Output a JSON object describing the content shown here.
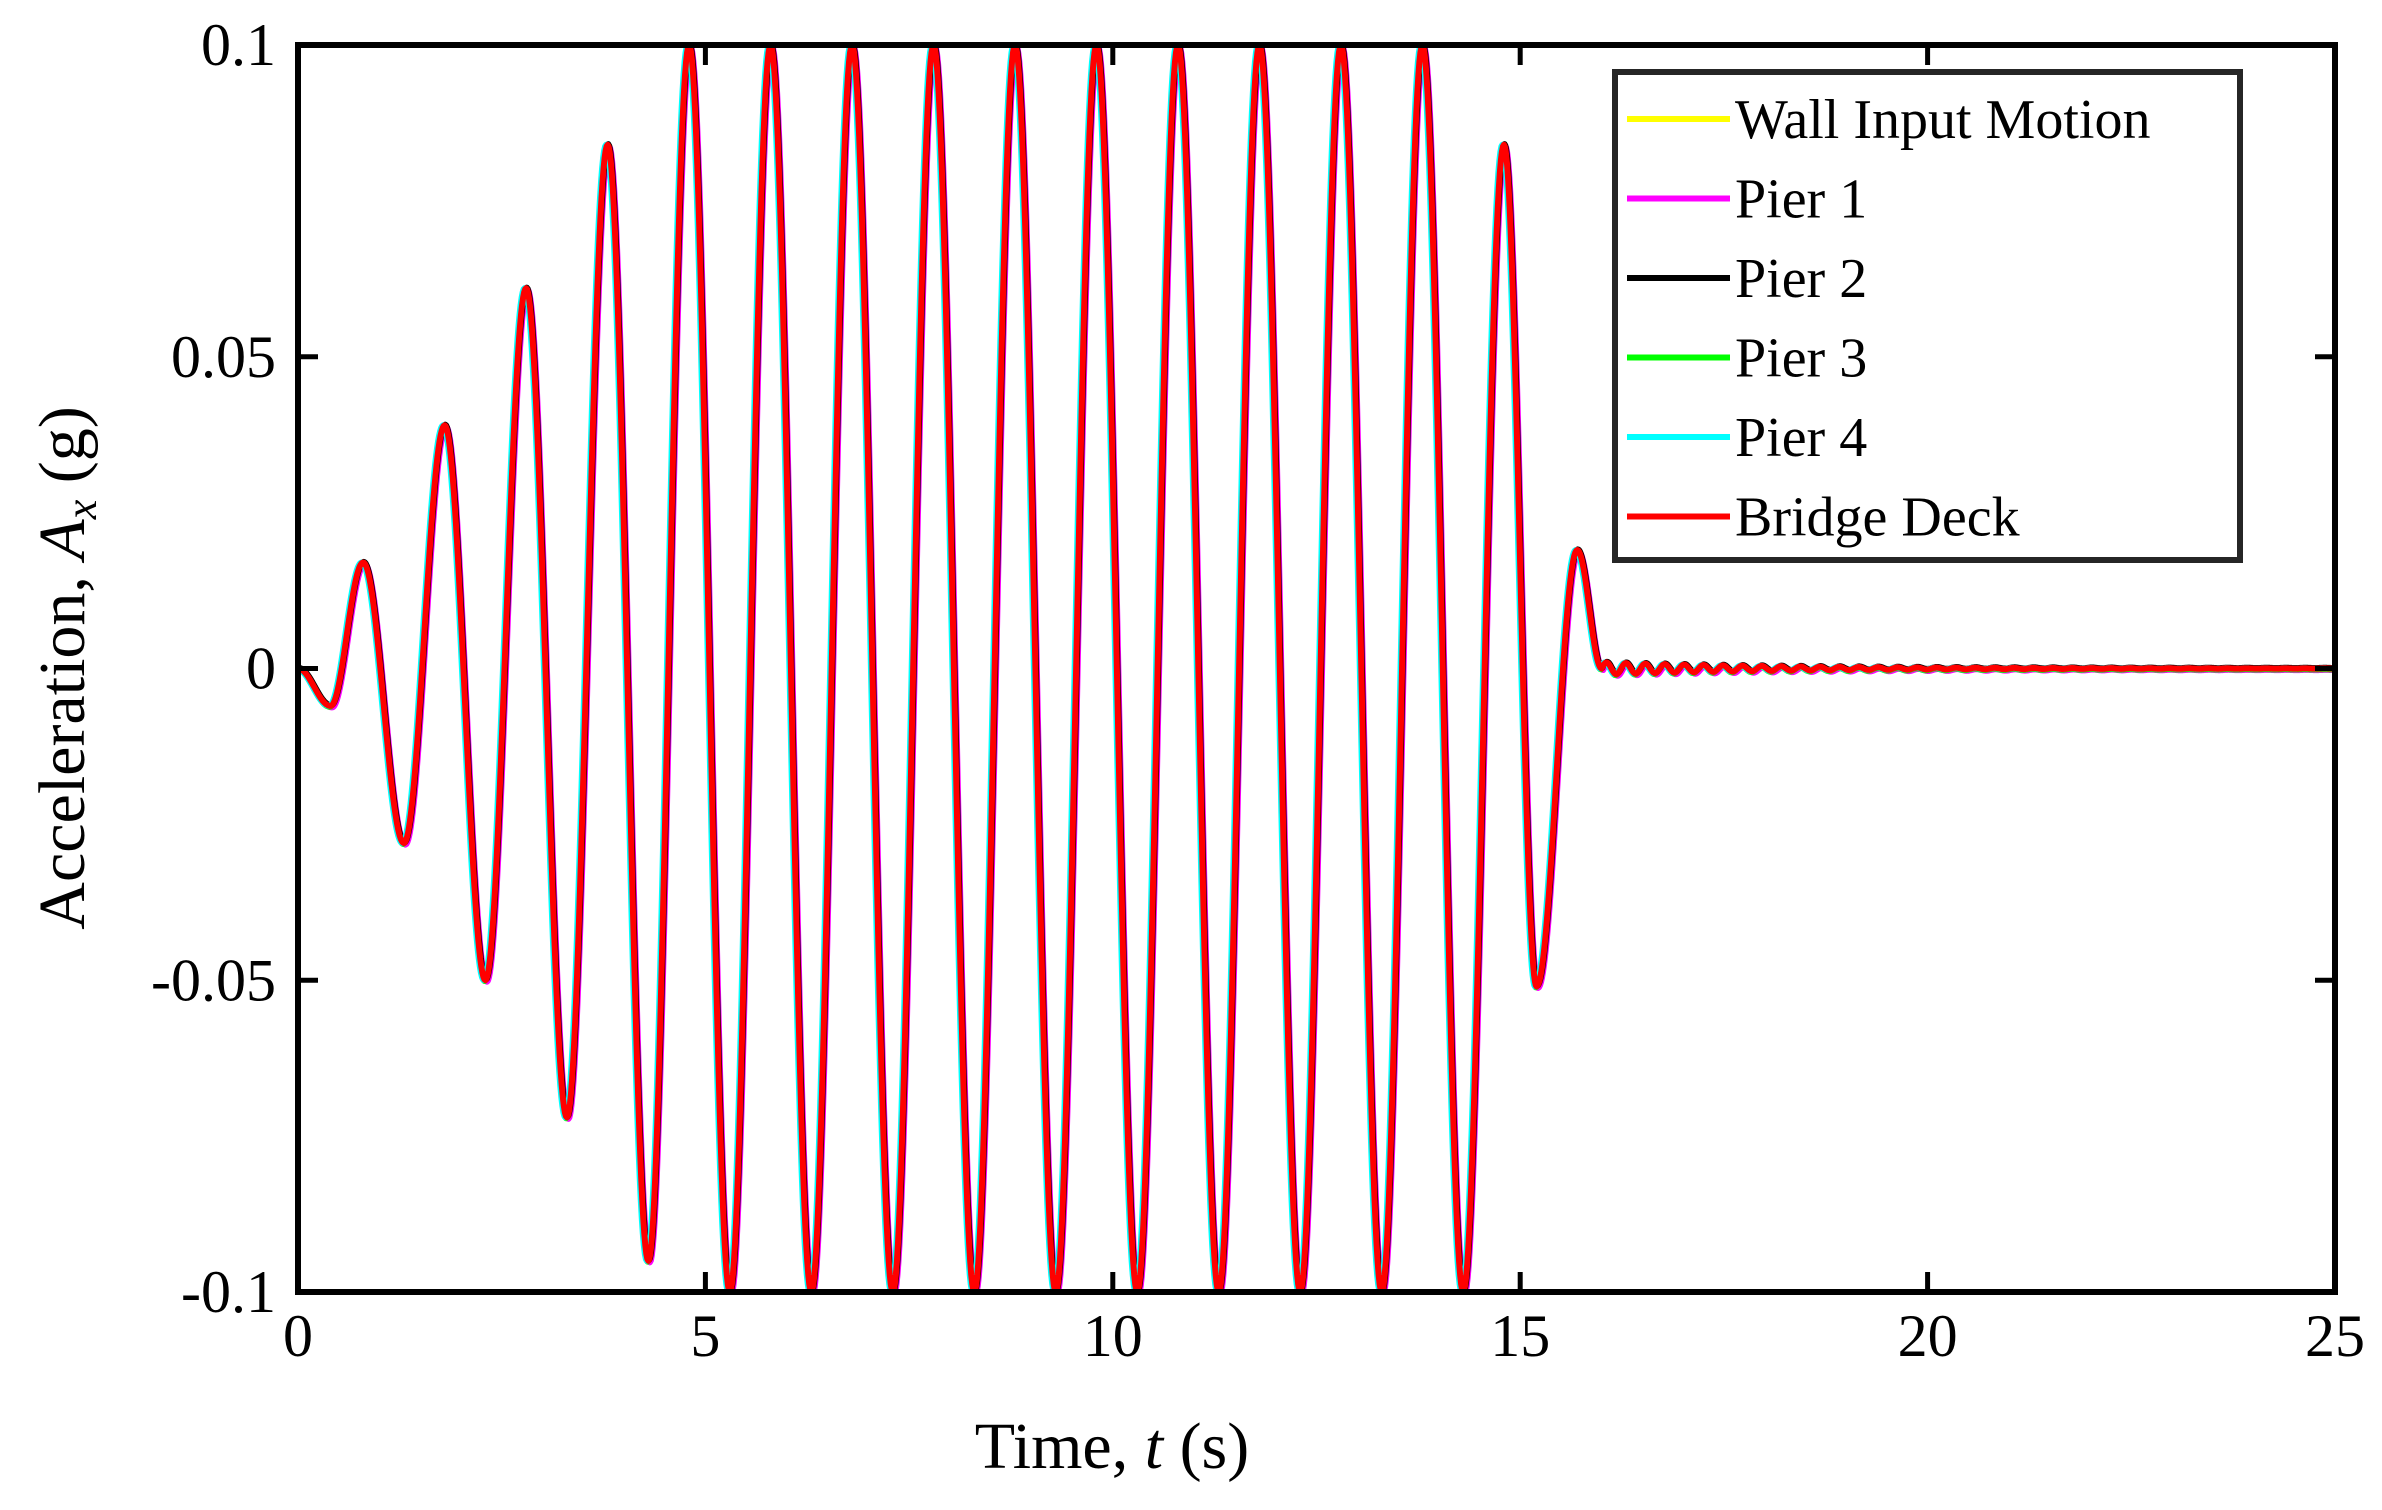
{
  "chart_data": {
    "type": "line",
    "title": "",
    "xlabel": "Time, t (s)",
    "ylabel": "Acceleration, A_x (g)",
    "xlabel_parts": {
      "pre": "Time, ",
      "var": "t",
      "post": " (s)"
    },
    "ylabel_parts": {
      "pre": "Acceleration, ",
      "var": "A",
      "sub": "x",
      "post": " (g)"
    },
    "xlim": [
      0,
      25
    ],
    "ylim": [
      -0.1,
      0.1
    ],
    "xticks": [
      0,
      5,
      10,
      15,
      20,
      25
    ],
    "xtick_labels": [
      "0",
      "5",
      "10",
      "15",
      "20",
      "25"
    ],
    "yticks": [
      -0.1,
      -0.05,
      0,
      0.05,
      0.1
    ],
    "ytick_labels": [
      "-0.1",
      "-0.05",
      "0",
      "0.05",
      "0.1"
    ],
    "grid": false,
    "legend_position": "top-right",
    "signal": {
      "description_of_shape": "tapered sine burst, 1 Hz",
      "frequency_hz": 1.0,
      "amplitude_g": 0.1,
      "extrema": [
        {
          "t": 0.4,
          "a": -0.006
        },
        {
          "t": 0.8,
          "a": 0.017
        },
        {
          "t": 1.3,
          "a": -0.028
        },
        {
          "t": 1.8,
          "a": 0.039
        },
        {
          "t": 2.3,
          "a": -0.05
        },
        {
          "t": 2.8,
          "a": 0.061
        },
        {
          "t": 3.3,
          "a": -0.072
        },
        {
          "t": 3.8,
          "a": 0.084
        },
        {
          "t": 4.3,
          "a": -0.095
        },
        {
          "t": 4.8,
          "a": 0.1
        },
        {
          "t": 5.3,
          "a": -0.1
        },
        {
          "t": 5.8,
          "a": 0.1
        },
        {
          "t": 6.3,
          "a": -0.1
        },
        {
          "t": 6.8,
          "a": 0.1
        },
        {
          "t": 7.3,
          "a": -0.1
        },
        {
          "t": 7.8,
          "a": 0.1
        },
        {
          "t": 8.3,
          "a": -0.1
        },
        {
          "t": 8.8,
          "a": 0.1
        },
        {
          "t": 9.3,
          "a": -0.1
        },
        {
          "t": 9.8,
          "a": 0.1
        },
        {
          "t": 10.3,
          "a": -0.1
        },
        {
          "t": 10.8,
          "a": 0.1
        },
        {
          "t": 11.3,
          "a": -0.1
        },
        {
          "t": 11.8,
          "a": 0.1
        },
        {
          "t": 12.3,
          "a": -0.1
        },
        {
          "t": 12.8,
          "a": 0.1
        },
        {
          "t": 13.3,
          "a": -0.1
        },
        {
          "t": 13.8,
          "a": 0.1
        },
        {
          "t": 14.3,
          "a": -0.1
        },
        {
          "t": 14.8,
          "a": 0.084
        },
        {
          "t": 15.2,
          "a": -0.051
        },
        {
          "t": 15.7,
          "a": 0.019
        },
        {
          "t": 16.0,
          "a": 0.0
        }
      ],
      "residual_oscillation": {
        "t_start": 16.0,
        "t_end": 25.0,
        "amplitude_g": 0.001
      }
    },
    "series": [
      {
        "name": "Wall Input Motion",
        "color": "#ffff00"
      },
      {
        "name": "Pier 1",
        "color": "#ff00ff"
      },
      {
        "name": "Pier 2",
        "color": "#000000"
      },
      {
        "name": "Pier 3",
        "color": "#00ff00"
      },
      {
        "name": "Pier 4",
        "color": "#00ffff"
      },
      {
        "name": "Bridge Deck",
        "color": "#ff0000"
      }
    ]
  }
}
